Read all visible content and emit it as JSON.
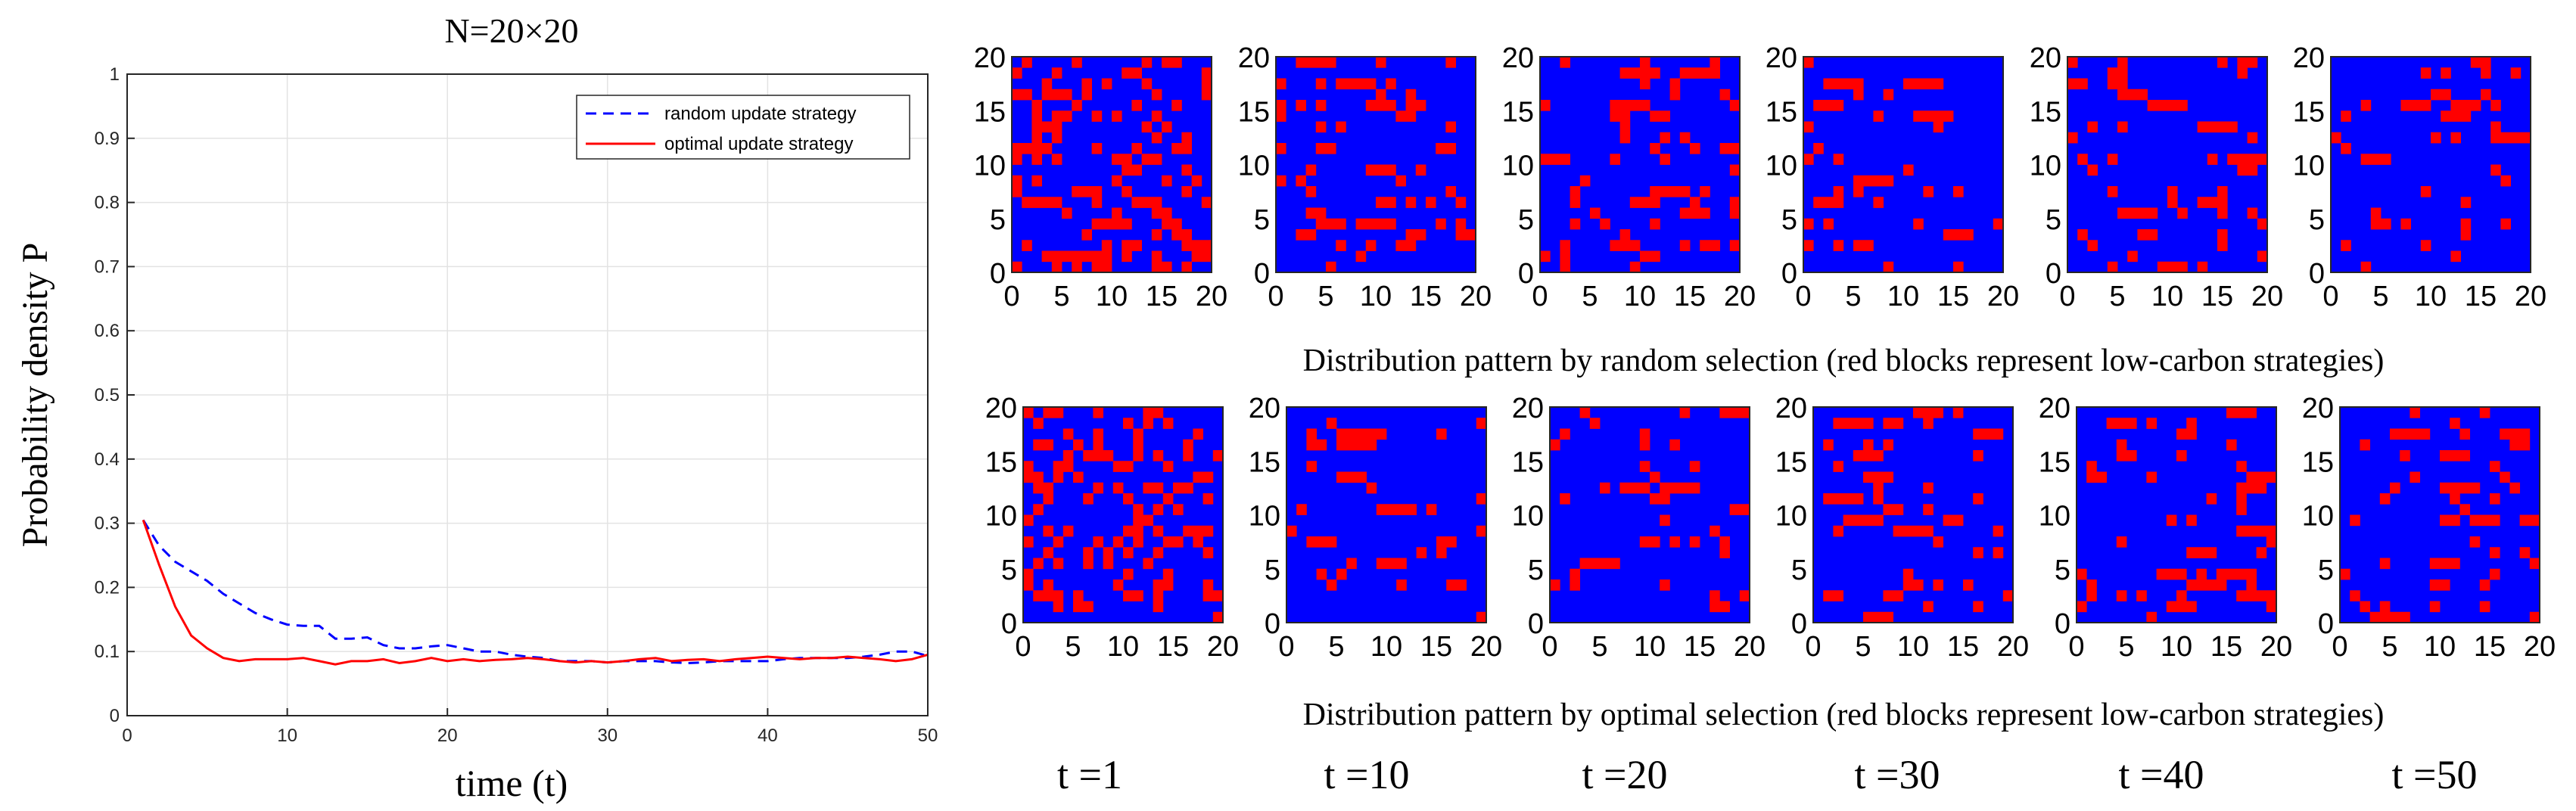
{
  "chart_data": [
    {
      "type": "line",
      "title": "N=20×20",
      "xlabel": "time  (t)",
      "ylabel": "Probability density P",
      "xlim": [
        0,
        50
      ],
      "ylim": [
        0,
        1
      ],
      "xticks": [
        "0",
        "10",
        "20",
        "30",
        "40",
        "50"
      ],
      "yticks": [
        "0",
        "0.1",
        "0.2",
        "0.3",
        "0.4",
        "0.5",
        "0.6",
        "0.7",
        "0.8",
        "0.9",
        "1"
      ],
      "grid": true,
      "legend_position": "top-right",
      "x": [
        1,
        2,
        3,
        4,
        5,
        6,
        7,
        8,
        9,
        10,
        11,
        12,
        13,
        14,
        15,
        16,
        17,
        18,
        19,
        20,
        21,
        22,
        23,
        24,
        25,
        26,
        27,
        28,
        29,
        30,
        31,
        32,
        33,
        34,
        35,
        36,
        37,
        38,
        39,
        40,
        41,
        42,
        43,
        44,
        45,
        46,
        47,
        48,
        49,
        50
      ],
      "series": [
        {
          "name": "random update strategy",
          "style": "dashed",
          "color": "#0000ff",
          "values": [
            0.305,
            0.265,
            0.24,
            0.225,
            0.21,
            0.19,
            0.175,
            0.16,
            0.15,
            0.142,
            0.14,
            0.14,
            0.12,
            0.12,
            0.122,
            0.11,
            0.105,
            0.105,
            0.108,
            0.11,
            0.105,
            0.1,
            0.1,
            0.095,
            0.092,
            0.09,
            0.085,
            0.085,
            0.085,
            0.083,
            0.085,
            0.085,
            0.085,
            0.083,
            0.082,
            0.083,
            0.085,
            0.085,
            0.085,
            0.085,
            0.088,
            0.09,
            0.09,
            0.09,
            0.09,
            0.092,
            0.095,
            0.1,
            0.1,
            0.093
          ]
        },
        {
          "name": "optimal update strategy",
          "style": "solid",
          "color": "#ff0000",
          "values": [
            0.305,
            0.235,
            0.17,
            0.125,
            0.105,
            0.09,
            0.085,
            0.088,
            0.088,
            0.088,
            0.09,
            0.085,
            0.08,
            0.085,
            0.085,
            0.088,
            0.082,
            0.085,
            0.09,
            0.085,
            0.088,
            0.085,
            0.087,
            0.088,
            0.09,
            0.088,
            0.085,
            0.083,
            0.085,
            0.083,
            0.085,
            0.088,
            0.09,
            0.085,
            0.087,
            0.088,
            0.085,
            0.088,
            0.09,
            0.092,
            0.09,
            0.088,
            0.09,
            0.09,
            0.092,
            0.09,
            0.088,
            0.085,
            0.088,
            0.095
          ]
        }
      ]
    },
    {
      "type": "heatmap",
      "grid_size": 20,
      "axis_range": [
        0,
        20
      ],
      "axis_ticks": [
        "0",
        "5",
        "10",
        "15",
        "20"
      ],
      "colors": {
        "background": "#0000ff",
        "low_carbon": "#ff0000"
      },
      "time_labels": [
        "t =1",
        "t =10",
        "t =20",
        "t =30",
        "t =40",
        "t =50"
      ],
      "rows": [
        {
          "caption": "Distribution pattern by random selection (red blocks represent low-carbon strategies)",
          "red_fraction": [
            0.31,
            0.14,
            0.11,
            0.09,
            0.1,
            0.1
          ]
        },
        {
          "caption": "Distribution pattern by optimal selection (red blocks represent low-carbon strategies)",
          "red_fraction": [
            0.31,
            0.09,
            0.09,
            0.08,
            0.09,
            0.1
          ]
        }
      ]
    }
  ]
}
